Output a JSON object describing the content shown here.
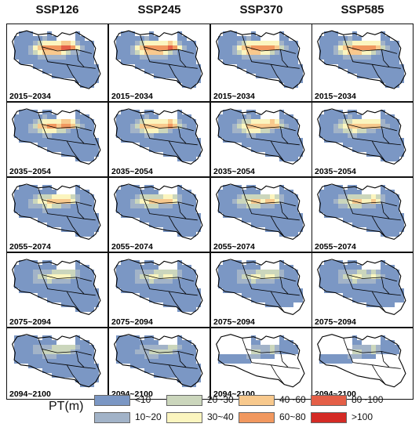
{
  "scenarios": [
    "SSP126",
    "SSP245",
    "SSP370",
    "SSP585"
  ],
  "periods": [
    "2015~2034",
    "2035~2054",
    "2055~2074",
    "2075~2094",
    "2094~2100"
  ],
  "legend": {
    "title": "PT(m)",
    "classes": [
      {
        "label": "<10",
        "color": "#7b97c4"
      },
      {
        "label": "10~20",
        "color": "#a2b3c8"
      },
      {
        "label": "20~30",
        "color": "#cbd6bc"
      },
      {
        "label": "30~40",
        "color": "#fbf5bf"
      },
      {
        "label": "40~60",
        "color": "#f8c98d"
      },
      {
        "label": "60~80",
        "color": "#f1985f"
      },
      {
        "label": "80~100",
        "color": "#e45f47"
      },
      {
        "label": ">100",
        "color": "#d42a25"
      }
    ]
  }
}
